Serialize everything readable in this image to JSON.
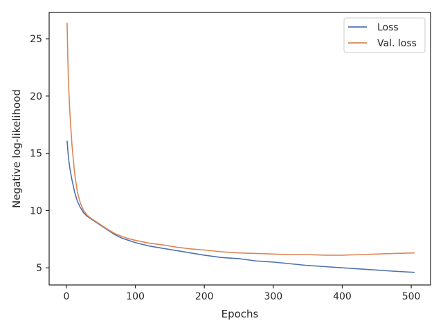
{
  "chart_data": {
    "type": "line",
    "xlabel": "Epochs",
    "ylabel": "Negative log-likelihood",
    "xlim": [
      -25,
      528
    ],
    "ylim": [
      3.5,
      27.3
    ],
    "xticks": [
      0,
      100,
      200,
      300,
      400,
      500
    ],
    "yticks": [
      5,
      10,
      15,
      20,
      25
    ],
    "grid": false,
    "legend_position": "top-right",
    "series": [
      {
        "name": "Loss",
        "color": "#4c72b0",
        "x": [
          1,
          3,
          5,
          8,
          12,
          16,
          20,
          25,
          30,
          35,
          40,
          50,
          60,
          70,
          80,
          90,
          100,
          120,
          140,
          160,
          180,
          200,
          225,
          250,
          275,
          300,
          325,
          350,
          375,
          400,
          425,
          450,
          475,
          505
        ],
        "y": [
          16.1,
          14.6,
          13.7,
          12.7,
          11.6,
          10.8,
          10.3,
          9.8,
          9.5,
          9.3,
          9.1,
          8.7,
          8.3,
          7.9,
          7.6,
          7.4,
          7.2,
          6.9,
          6.7,
          6.5,
          6.3,
          6.1,
          5.9,
          5.8,
          5.6,
          5.5,
          5.35,
          5.2,
          5.1,
          5.0,
          4.9,
          4.8,
          4.7,
          4.6
        ]
      },
      {
        "name": "Val. loss",
        "color": "#dd8452",
        "x": [
          1,
          2,
          3,
          5,
          8,
          12,
          16,
          20,
          25,
          30,
          35,
          40,
          50,
          60,
          70,
          80,
          90,
          100,
          120,
          140,
          160,
          180,
          200,
          225,
          250,
          275,
          300,
          325,
          350,
          375,
          400,
          425,
          450,
          475,
          505
        ],
        "y": [
          26.4,
          23.5,
          21.2,
          18.6,
          15.8,
          13.2,
          11.6,
          10.7,
          10.0,
          9.6,
          9.35,
          9.15,
          8.75,
          8.35,
          8.0,
          7.75,
          7.55,
          7.4,
          7.15,
          7.0,
          6.8,
          6.65,
          6.55,
          6.4,
          6.3,
          6.25,
          6.2,
          6.15,
          6.15,
          6.1,
          6.1,
          6.15,
          6.2,
          6.25,
          6.3
        ]
      }
    ]
  }
}
